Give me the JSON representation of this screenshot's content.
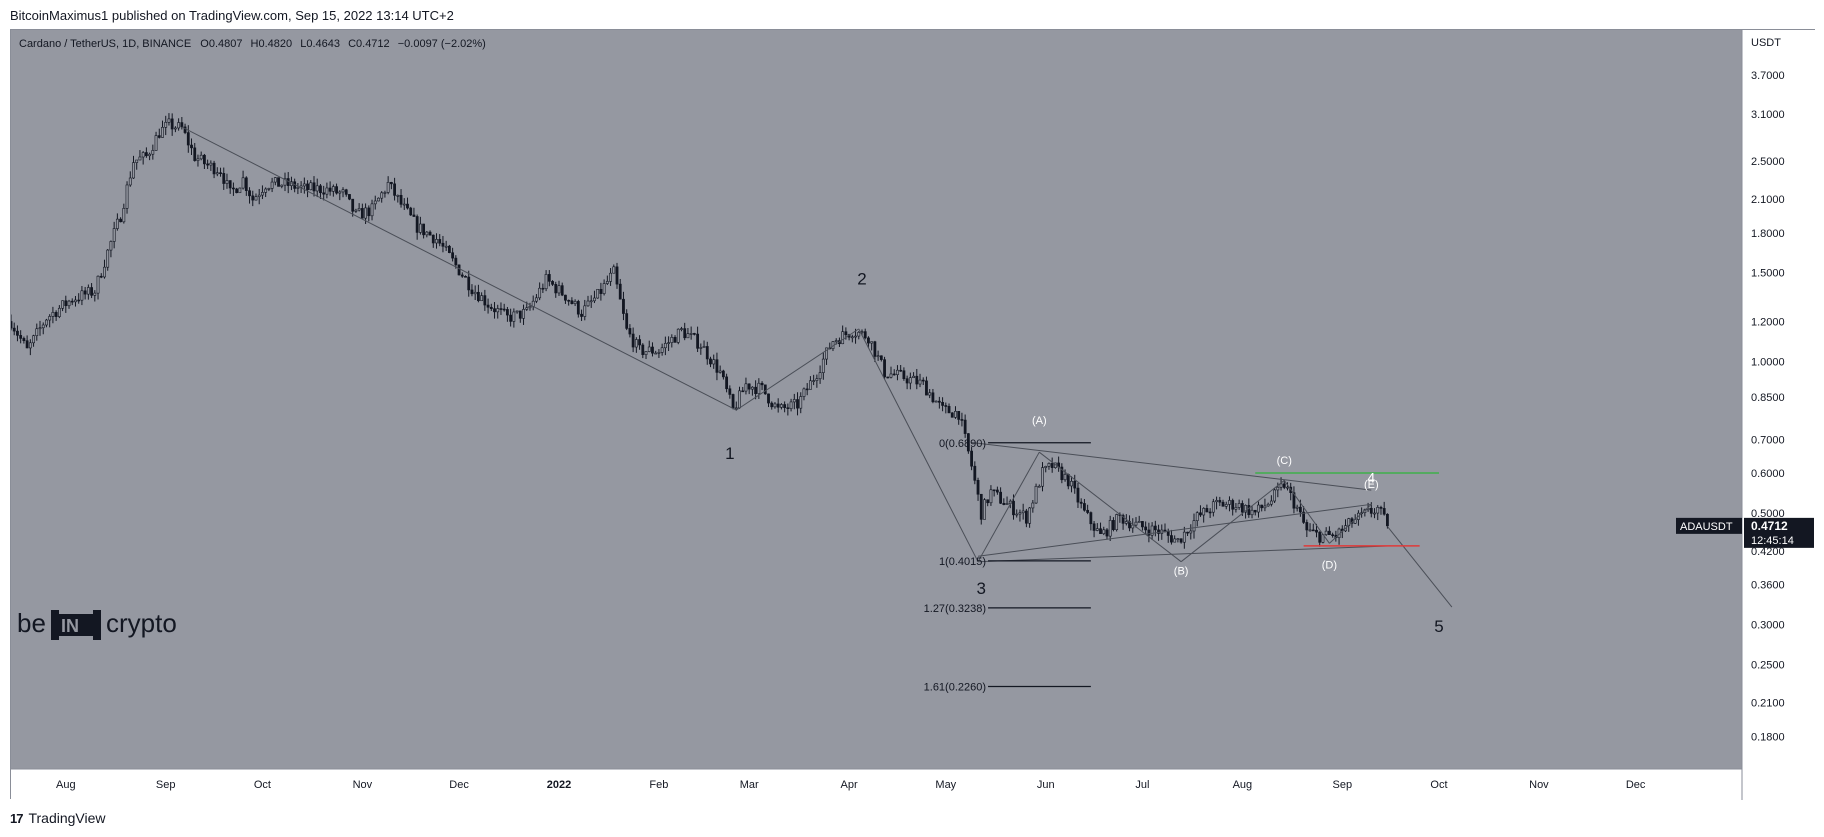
{
  "publish_line": "BitcoinMaximus1 published on TradingView.com, Sep 15, 2022 13:14 UTC+2",
  "footer": {
    "logo_glyph": "17",
    "brand": "TradingView"
  },
  "watermark": {
    "left": "be",
    "middle": "IN",
    "right": "crypto"
  },
  "colors": {
    "chart_bg": "#9598a1",
    "candle": "#131722",
    "trend_line": "#4a4e57",
    "support_red": "#e03a3a",
    "resistance_green": "#3fb04a",
    "price_tag_bg": "#131722"
  },
  "chart_data": {
    "type": "candlestick",
    "symbol_line": {
      "name": "Cardano / TetherUS, 1D, BINANCE",
      "o_label": "O",
      "o": "0.4807",
      "h_label": "H",
      "h": "0.4820",
      "l_label": "L",
      "l": "0.4643",
      "c_label": "C",
      "c": "0.4712",
      "change": "−0.0097 (−2.02%)"
    },
    "currency_label": "USDT",
    "y_scale": "log",
    "ylim": [
      0.155,
      4.55
    ],
    "xlim": [
      "2021-07-15",
      "2023-01-03"
    ],
    "y_ticks": [
      "3.7000",
      "3.1000",
      "2.5000",
      "2.1000",
      "1.8000",
      "1.5000",
      "1.2000",
      "1.0000",
      "0.8500",
      "0.7000",
      "0.6000",
      "0.5000",
      "0.4200",
      "0.3600",
      "0.3000",
      "0.2500",
      "0.2100",
      "0.1800"
    ],
    "x_ticks": [
      {
        "label": "Aug",
        "date": "2021-08-01",
        "bold": false
      },
      {
        "label": "Sep",
        "date": "2021-09-01",
        "bold": false
      },
      {
        "label": "Oct",
        "date": "2021-10-01",
        "bold": false
      },
      {
        "label": "Nov",
        "date": "2021-11-01",
        "bold": false
      },
      {
        "label": "Dec",
        "date": "2021-12-01",
        "bold": false
      },
      {
        "label": "2022",
        "date": "2022-01-01",
        "bold": true
      },
      {
        "label": "Feb",
        "date": "2022-02-01",
        "bold": false
      },
      {
        "label": "Mar",
        "date": "2022-03-01",
        "bold": false
      },
      {
        "label": "Apr",
        "date": "2022-04-01",
        "bold": false
      },
      {
        "label": "May",
        "date": "2022-05-01",
        "bold": false
      },
      {
        "label": "Jun",
        "date": "2022-06-01",
        "bold": false
      },
      {
        "label": "Jul",
        "date": "2022-07-01",
        "bold": false
      },
      {
        "label": "Aug",
        "date": "2022-08-01",
        "bold": false
      },
      {
        "label": "Sep",
        "date": "2022-09-01",
        "bold": false
      },
      {
        "label": "Oct",
        "date": "2022-10-01",
        "bold": false
      },
      {
        "label": "Nov",
        "date": "2022-11-01",
        "bold": false
      },
      {
        "label": "Dec",
        "date": "2022-12-01",
        "bold": false
      }
    ],
    "price_series": [
      [
        "2021-07-15",
        1.2
      ],
      [
        "2021-07-20",
        1.05
      ],
      [
        "2021-07-26",
        1.22
      ],
      [
        "2021-08-03",
        1.33
      ],
      [
        "2021-08-10",
        1.38
      ],
      [
        "2021-08-14",
        1.65
      ],
      [
        "2021-08-18",
        1.95
      ],
      [
        "2021-08-22",
        2.5
      ],
      [
        "2021-08-26",
        2.55
      ],
      [
        "2021-08-30",
        2.85
      ],
      [
        "2021-09-02",
        2.95
      ],
      [
        "2021-09-06",
        2.9
      ],
      [
        "2021-09-10",
        2.55
      ],
      [
        "2021-09-14",
        2.45
      ],
      [
        "2021-09-18",
        2.4
      ],
      [
        "2021-09-21",
        2.15
      ],
      [
        "2021-09-25",
        2.3
      ],
      [
        "2021-09-28",
        2.1
      ],
      [
        "2021-10-02",
        2.25
      ],
      [
        "2021-10-08",
        2.25
      ],
      [
        "2021-10-14",
        2.2
      ],
      [
        "2021-10-20",
        2.2
      ],
      [
        "2021-10-26",
        2.15
      ],
      [
        "2021-10-30",
        1.95
      ],
      [
        "2021-11-04",
        2.0
      ],
      [
        "2021-11-09",
        2.25
      ],
      [
        "2021-11-13",
        2.05
      ],
      [
        "2021-11-18",
        1.85
      ],
      [
        "2021-11-24",
        1.75
      ],
      [
        "2021-11-30",
        1.55
      ],
      [
        "2021-12-05",
        1.4
      ],
      [
        "2021-12-10",
        1.3
      ],
      [
        "2021-12-16",
        1.22
      ],
      [
        "2021-12-22",
        1.25
      ],
      [
        "2021-12-28",
        1.45
      ],
      [
        "2022-01-03",
        1.35
      ],
      [
        "2022-01-08",
        1.25
      ],
      [
        "2022-01-13",
        1.35
      ],
      [
        "2022-01-18",
        1.5
      ],
      [
        "2022-01-22",
        1.15
      ],
      [
        "2022-01-26",
        1.05
      ],
      [
        "2022-02-01",
        1.05
      ],
      [
        "2022-02-08",
        1.15
      ],
      [
        "2022-02-14",
        1.08
      ],
      [
        "2022-02-20",
        0.95
      ],
      [
        "2022-02-24",
        0.8
      ],
      [
        "2022-02-28",
        0.9
      ],
      [
        "2022-03-05",
        0.88
      ],
      [
        "2022-03-10",
        0.8
      ],
      [
        "2022-03-16",
        0.82
      ],
      [
        "2022-03-22",
        0.95
      ],
      [
        "2022-03-27",
        1.1
      ],
      [
        "2022-04-02",
        1.15
      ],
      [
        "2022-04-07",
        1.12
      ],
      [
        "2022-04-12",
        0.95
      ],
      [
        "2022-04-18",
        0.93
      ],
      [
        "2022-04-24",
        0.9
      ],
      [
        "2022-04-30",
        0.8
      ],
      [
        "2022-05-05",
        0.79
      ],
      [
        "2022-05-09",
        0.62
      ],
      [
        "2022-05-12",
        0.5
      ],
      [
        "2022-05-15",
        0.55
      ],
      [
        "2022-05-20",
        0.52
      ],
      [
        "2022-05-26",
        0.49
      ],
      [
        "2022-05-31",
        0.6
      ],
      [
        "2022-06-03",
        0.62
      ],
      [
        "2022-06-08",
        0.58
      ],
      [
        "2022-06-13",
        0.5
      ],
      [
        "2022-06-18",
        0.45
      ],
      [
        "2022-06-24",
        0.49
      ],
      [
        "2022-06-30",
        0.47
      ],
      [
        "2022-07-06",
        0.46
      ],
      [
        "2022-07-12",
        0.44
      ],
      [
        "2022-07-18",
        0.49
      ],
      [
        "2022-07-24",
        0.52
      ],
      [
        "2022-07-30",
        0.52
      ],
      [
        "2022-08-05",
        0.5
      ],
      [
        "2022-08-10",
        0.53
      ],
      [
        "2022-08-14",
        0.57
      ],
      [
        "2022-08-18",
        0.51
      ],
      [
        "2022-08-21",
        0.46
      ],
      [
        "2022-08-25",
        0.45
      ],
      [
        "2022-08-30",
        0.45
      ],
      [
        "2022-09-04",
        0.48
      ],
      [
        "2022-09-09",
        0.5
      ],
      [
        "2022-09-12",
        0.51
      ],
      [
        "2022-09-15",
        0.4712
      ]
    ],
    "annotations": {
      "wave_labels": [
        {
          "text": "1",
          "date": "2022-02-23",
          "price": 0.64,
          "color": "#131722",
          "size": 17
        },
        {
          "text": "2",
          "date": "2022-04-05",
          "price": 1.42,
          "color": "#131722",
          "size": 17
        },
        {
          "text": "3",
          "date": "2022-05-12",
          "price": 0.345,
          "color": "#131722",
          "size": 17
        },
        {
          "text": "4",
          "date": "2022-09-10",
          "price": 0.575,
          "color": "#ffffff",
          "size": 14
        },
        {
          "text": "5",
          "date": "2022-10-01",
          "price": 0.29,
          "color": "#131722",
          "size": 17
        },
        {
          "text": "(A)",
          "date": "2022-05-30",
          "price": 0.75,
          "color": "#ffffff",
          "size": 11
        },
        {
          "text": "(B)",
          "date": "2022-07-13",
          "price": 0.377,
          "color": "#ffffff",
          "size": 11
        },
        {
          "text": "(C)",
          "date": "2022-08-14",
          "price": 0.625,
          "color": "#ffffff",
          "size": 11
        },
        {
          "text": "(D)",
          "date": "2022-08-28",
          "price": 0.388,
          "color": "#ffffff",
          "size": 11
        },
        {
          "text": "(E)",
          "date": "2022-09-10",
          "price": 0.56,
          "color": "#ffffff",
          "size": 11
        }
      ],
      "fib_levels": [
        {
          "label": "0(0.6890)",
          "price": 0.689
        },
        {
          "label": "1(0.4015)",
          "price": 0.4015
        },
        {
          "label": "1.27(0.3238)",
          "price": 0.3238
        },
        {
          "label": "1.61(0.2260)",
          "price": 0.226
        }
      ],
      "fib_date_range": [
        "2022-05-11",
        "2022-06-15"
      ],
      "trend_lines": [
        {
          "from": [
            "2021-09-06",
            2.92
          ],
          "to": [
            "2022-02-25",
            0.8
          ]
        },
        {
          "from": [
            "2022-02-25",
            0.8
          ],
          "to": [
            "2022-04-04",
            1.16
          ]
        },
        {
          "from": [
            "2022-04-04",
            1.16
          ],
          "to": [
            "2022-05-11",
            0.4
          ]
        },
        {
          "from": [
            "2022-05-11",
            0.4
          ],
          "to": [
            "2022-05-30",
            0.66
          ]
        },
        {
          "from": [
            "2022-05-30",
            0.66
          ],
          "to": [
            "2022-07-13",
            0.4
          ]
        },
        {
          "from": [
            "2022-07-13",
            0.4
          ],
          "to": [
            "2022-08-14",
            0.58
          ]
        },
        {
          "from": [
            "2022-08-14",
            0.58
          ],
          "to": [
            "2022-08-28",
            0.435
          ]
        },
        {
          "from": [
            "2022-08-28",
            0.435
          ],
          "to": [
            "2022-09-10",
            0.52
          ]
        },
        {
          "from": [
            "2022-09-15",
            0.47
          ],
          "to": [
            "2022-10-05",
            0.325
          ]
        },
        {
          "from": [
            "2022-05-09",
            0.69
          ],
          "to": [
            "2022-09-10",
            0.555
          ]
        },
        {
          "from": [
            "2022-05-11",
            0.4
          ],
          "to": [
            "2022-09-16",
            0.43
          ]
        },
        {
          "from": [
            "2022-05-11",
            0.41
          ],
          "to": [
            "2022-09-10",
            0.52
          ]
        }
      ],
      "resistance_green": {
        "from": "2022-08-05",
        "to": "2022-10-01",
        "price": 0.6
      },
      "support_red": {
        "from": "2022-08-20",
        "to": "2022-09-25",
        "price": 0.43
      }
    },
    "price_tag": {
      "symbol": "ADAUSDT",
      "price": "0.4712",
      "countdown": "12:45:14",
      "value": 0.4712
    }
  }
}
